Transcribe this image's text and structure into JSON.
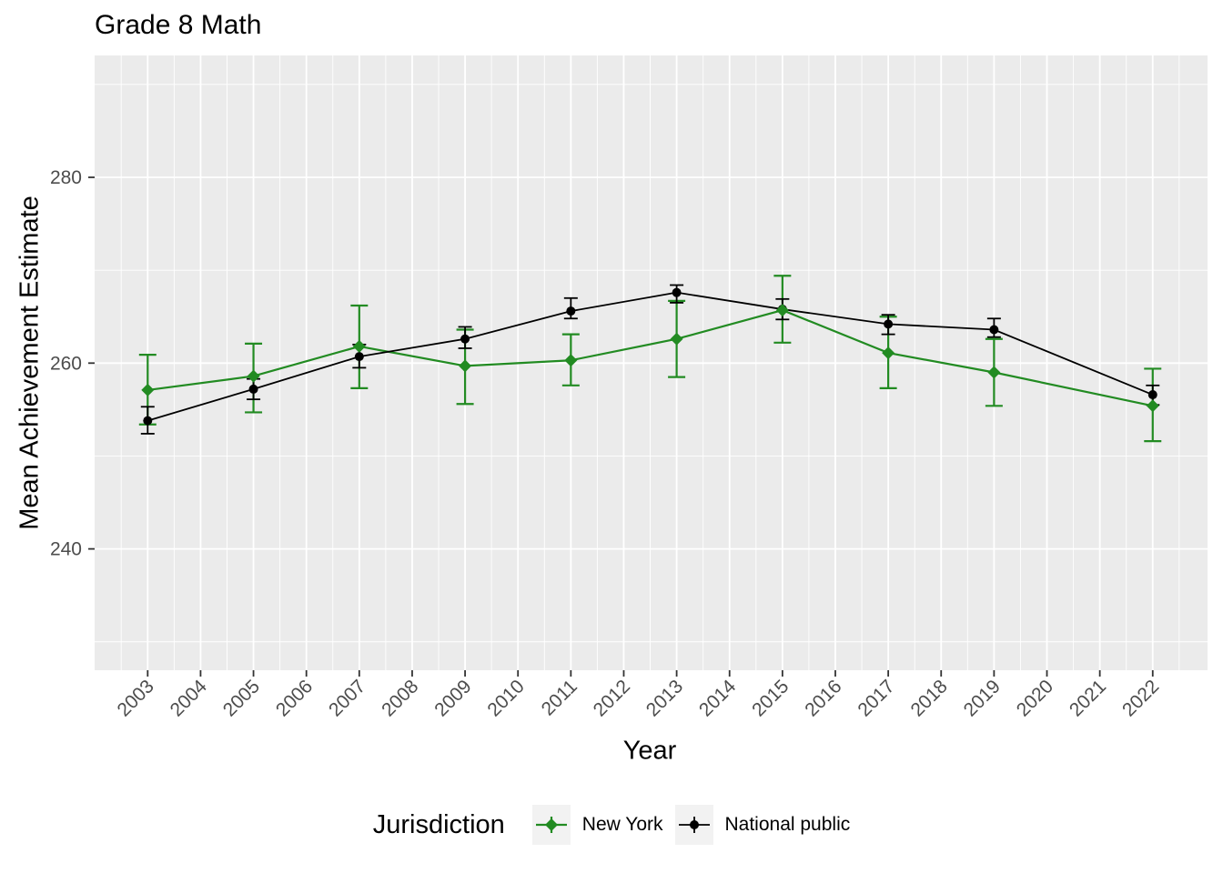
{
  "colors": {
    "background": "#FFFFFF",
    "panel_background": "#EBEBEB",
    "gridline": "#FFFFFF",
    "tick_mark": "#333333",
    "tick_label": "#4D4D4D",
    "text": "#000000",
    "legend_key_background": "#F2F2F2",
    "new_york": "#228B22",
    "national_public": "#000000"
  },
  "chart_data": {
    "type": "line",
    "title": "Grade 8 Math",
    "xlabel": "Year",
    "ylabel": "Mean Achievement Estimate",
    "grid": "on",
    "error_bars": true,
    "x_axis": {
      "tick_years": [
        2003,
        2004,
        2005,
        2006,
        2007,
        2008,
        2009,
        2010,
        2011,
        2012,
        2013,
        2014,
        2015,
        2016,
        2017,
        2018,
        2019,
        2020,
        2021,
        2022
      ],
      "range": [
        2002,
        2023
      ],
      "label_rotation_deg": 45
    },
    "y_axis": {
      "ticks": [
        240,
        260,
        280
      ],
      "minor_ticks": [
        230,
        250,
        270,
        290
      ],
      "range": [
        227,
        293
      ]
    },
    "legend": {
      "title": "Jurisdiction",
      "position": "bottom"
    },
    "series": [
      {
        "name": "New York",
        "color": "#228B22",
        "marker": "diamond",
        "points": [
          {
            "year": 2003,
            "mean": 257.1,
            "lo": 253.4,
            "hi": 260.9
          },
          {
            "year": 2005,
            "mean": 258.6,
            "lo": 254.7,
            "hi": 262.1
          },
          {
            "year": 2007,
            "mean": 261.8,
            "lo": 257.3,
            "hi": 266.2
          },
          {
            "year": 2009,
            "mean": 259.7,
            "lo": 255.6,
            "hi": 263.6
          },
          {
            "year": 2011,
            "mean": 260.3,
            "lo": 257.6,
            "hi": 263.1
          },
          {
            "year": 2013,
            "mean": 262.6,
            "lo": 258.5,
            "hi": 266.7
          },
          {
            "year": 2015,
            "mean": 265.7,
            "lo": 262.2,
            "hi": 269.4
          },
          {
            "year": 2017,
            "mean": 261.1,
            "lo": 257.3,
            "hi": 265.0
          },
          {
            "year": 2019,
            "mean": 259.0,
            "lo": 255.4,
            "hi": 262.6
          },
          {
            "year": 2022,
            "mean": 255.4,
            "lo": 251.6,
            "hi": 259.4
          }
        ]
      },
      {
        "name": "National public",
        "color": "#000000",
        "marker": "circle",
        "points": [
          {
            "year": 2003,
            "mean": 253.8,
            "lo": 252.4,
            "hi": 255.3
          },
          {
            "year": 2005,
            "mean": 257.2,
            "lo": 256.1,
            "hi": 258.3
          },
          {
            "year": 2007,
            "mean": 260.7,
            "lo": 259.5,
            "hi": 262.0
          },
          {
            "year": 2009,
            "mean": 262.6,
            "lo": 261.6,
            "hi": 263.9
          },
          {
            "year": 2011,
            "mean": 265.6,
            "lo": 264.8,
            "hi": 267.0
          },
          {
            "year": 2013,
            "mean": 267.6,
            "lo": 266.5,
            "hi": 268.4
          },
          {
            "year": 2015,
            "mean": 265.8,
            "lo": 264.7,
            "hi": 266.9
          },
          {
            "year": 2017,
            "mean": 264.2,
            "lo": 263.1,
            "hi": 265.2
          },
          {
            "year": 2019,
            "mean": 263.6,
            "lo": 262.8,
            "hi": 264.8
          },
          {
            "year": 2022,
            "mean": 256.6,
            "lo": 255.5,
            "hi": 257.6
          }
        ]
      }
    ]
  }
}
